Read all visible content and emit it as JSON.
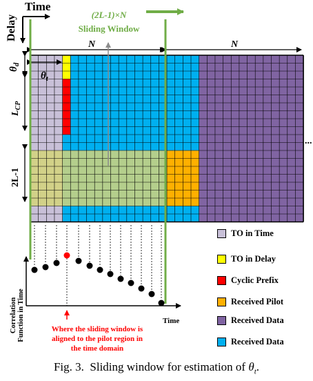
{
  "axes": {
    "time_label": "Time",
    "delay_label": "Delay"
  },
  "window": {
    "size_label": "(2L-1)×N",
    "name_label": "Sliding Window"
  },
  "dimensions": {
    "n_left": "N",
    "n_right": "N",
    "theta_d": "θ",
    "theta_d_sub": "d",
    "theta_t": "θ",
    "theta_t_sub": "t",
    "l_cp": "L",
    "l_cp_sub": "CP",
    "two_l_minus_1": "2L-1",
    "ellipsis": "..."
  },
  "correlation": {
    "ylabel_line1": "Correlation",
    "ylabel_line2": "Function in Time",
    "xlabel": "Time",
    "annotation_line1": "Where the sliding window is",
    "annotation_line2": "aligned to the pilot region in",
    "annotation_line3": "the time domain"
  },
  "legend": [
    {
      "label": "TO in Time",
      "color": "#c8c0d8"
    },
    {
      "label": "TO in Delay",
      "color": "#ffff00"
    },
    {
      "label": "Cyclic Prefix",
      "color": "#ff0000"
    },
    {
      "label": "Received Pilot",
      "color": "#ffb000"
    },
    {
      "label": "Received Data",
      "color": "#8064a2"
    },
    {
      "label": "Received Data",
      "color": "#00b0f0"
    }
  ],
  "colors": {
    "window_green": "#70ad47",
    "annotation_red": "#ff0000",
    "grid_blue": "#00b0f0",
    "grid_purple": "#8064a2",
    "to_time": "#c8c0d8",
    "pilot": "#ffb000",
    "overlay_yellow": "#d4d47a"
  },
  "caption": {
    "prefix": "Fig. 3.",
    "text": "Sliding window for estimation of",
    "math": "θ",
    "math_sub": "t",
    "end": "."
  }
}
